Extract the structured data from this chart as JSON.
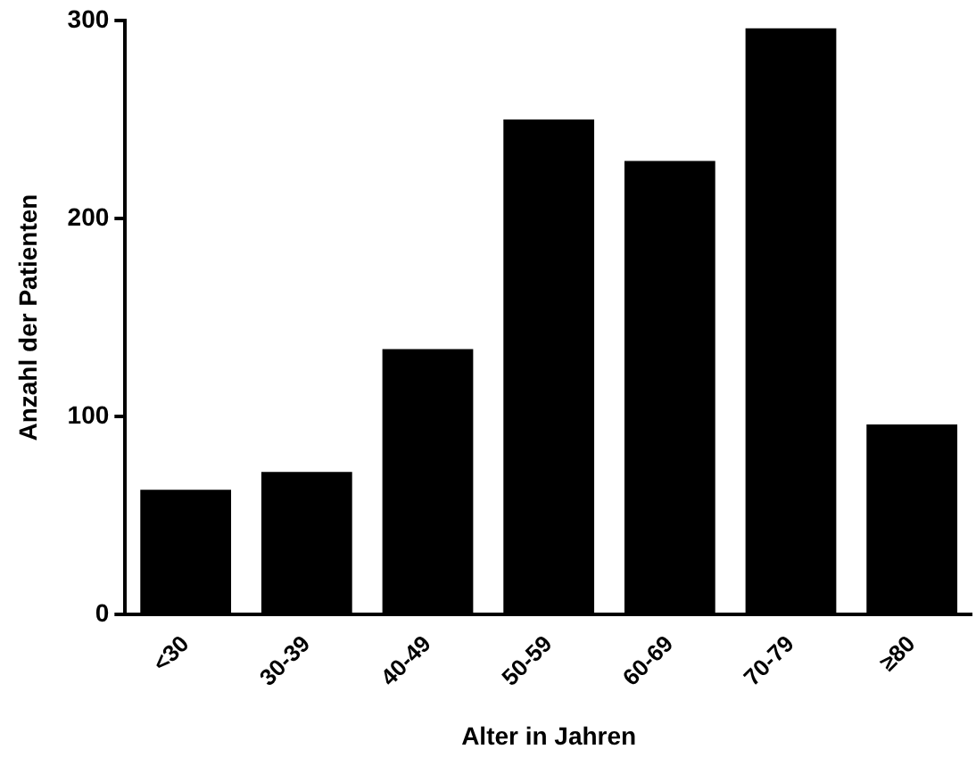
{
  "chart_data": {
    "type": "bar",
    "xlabel": "Alter in Jahren",
    "ylabel": "Anzahl der Patienten",
    "categories": [
      "<30",
      "30-39",
      "40-49",
      "50-59",
      "60-69",
      "70-79",
      "≥80"
    ],
    "values": [
      63,
      72,
      134,
      250,
      229,
      296,
      96
    ],
    "color": "#000000",
    "ylim": [
      0,
      300
    ],
    "yticks": [
      0,
      100,
      200,
      300
    ],
    "grid": false,
    "legend": false
  }
}
